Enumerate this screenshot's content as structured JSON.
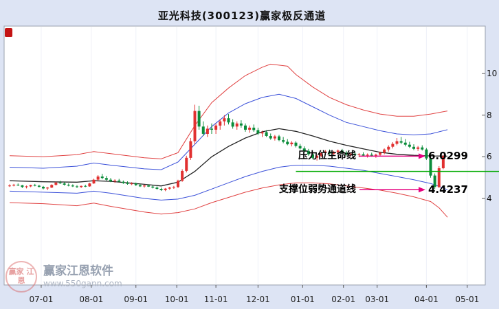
{
  "title": "亚光科技(300123)赢家极反通道",
  "watermark": {
    "logo_text": "赢家 江恩",
    "brand": "赢家江恩软件",
    "url": "www.550gann.com"
  },
  "colors": {
    "background": "#dde4f4",
    "plot_bg": "#ffffff",
    "up": "#e13030",
    "down": "#0b8c3a",
    "channel_red": "#e04040",
    "channel_blue": "#3a50d9",
    "life_line": "#222222",
    "green_line": "#00aa00",
    "arrow": "#e5007f"
  },
  "y_axis": {
    "ticks": [
      10,
      8,
      6,
      4
    ]
  },
  "x_axis": {
    "ticks": [
      "07-01",
      "08-01",
      "09-01",
      "10-01",
      "11-01",
      "12-01",
      "01-01",
      "02-01",
      "03-01",
      "04-01",
      "05-01"
    ]
  },
  "annotations": {
    "pressure": {
      "label": "压力位生命线",
      "value": "6.0299",
      "y_value": 6.03
    },
    "support": {
      "label": "支撑位弱势通道线",
      "value": "4.4237",
      "y_value": 4.42
    }
  },
  "chart_data": {
    "type": "candlestick",
    "title": "亚光科技(300123)赢家极反通道",
    "symbol": "300123",
    "stock_name": "亚光科技",
    "ylim": [
      0,
      12.3
    ],
    "x_tick_indices": [
      7.5,
      19.4,
      30,
      39.7,
      49,
      59,
      69.6,
      79.3,
      87.3,
      99,
      108.7
    ],
    "candles": [
      [
        4.6,
        4.68,
        4.55,
        4.62
      ],
      [
        4.62,
        4.7,
        4.58,
        4.66
      ],
      [
        4.66,
        4.72,
        4.6,
        4.63
      ],
      [
        4.63,
        4.65,
        4.5,
        4.55
      ],
      [
        4.55,
        4.62,
        4.48,
        4.58
      ],
      [
        4.58,
        4.66,
        4.54,
        4.64
      ],
      [
        4.64,
        4.7,
        4.58,
        4.61
      ],
      [
        4.61,
        4.66,
        4.52,
        4.56
      ],
      [
        4.56,
        4.6,
        4.44,
        4.48
      ],
      [
        4.48,
        4.55,
        4.4,
        4.52
      ],
      [
        4.52,
        4.68,
        4.5,
        4.65
      ],
      [
        4.65,
        4.8,
        4.62,
        4.76
      ],
      [
        4.76,
        4.85,
        4.7,
        4.72
      ],
      [
        4.72,
        4.78,
        4.62,
        4.66
      ],
      [
        4.66,
        4.72,
        4.58,
        4.62
      ],
      [
        4.62,
        4.68,
        4.55,
        4.58
      ],
      [
        4.58,
        4.64,
        4.5,
        4.55
      ],
      [
        4.55,
        4.62,
        4.5,
        4.6
      ],
      [
        4.6,
        4.66,
        4.54,
        4.58
      ],
      [
        4.58,
        4.75,
        4.56,
        4.72
      ],
      [
        4.72,
        4.95,
        4.7,
        4.9
      ],
      [
        4.9,
        5.12,
        4.85,
        5.05
      ],
      [
        5.05,
        5.18,
        4.92,
        4.98
      ],
      [
        4.98,
        5.08,
        4.85,
        4.9
      ],
      [
        4.9,
        4.98,
        4.78,
        4.82
      ],
      [
        4.82,
        4.92,
        4.75,
        4.86
      ],
      [
        4.86,
        4.94,
        4.78,
        4.8
      ],
      [
        4.8,
        4.86,
        4.7,
        4.74
      ],
      [
        4.74,
        4.82,
        4.66,
        4.7
      ],
      [
        4.7,
        4.78,
        4.64,
        4.72
      ],
      [
        4.72,
        4.76,
        4.6,
        4.64
      ],
      [
        4.64,
        4.7,
        4.55,
        4.58
      ],
      [
        4.58,
        4.66,
        4.52,
        4.62
      ],
      [
        4.62,
        4.68,
        4.55,
        4.57
      ],
      [
        4.57,
        4.62,
        4.48,
        4.52
      ],
      [
        4.52,
        4.58,
        4.42,
        4.46
      ],
      [
        4.46,
        4.52,
        4.36,
        4.4
      ],
      [
        4.4,
        4.5,
        4.35,
        4.47
      ],
      [
        4.47,
        4.56,
        4.42,
        4.52
      ],
      [
        4.52,
        4.6,
        4.46,
        4.55
      ],
      [
        4.55,
        4.9,
        4.5,
        4.85
      ],
      [
        4.85,
        5.4,
        4.8,
        5.32
      ],
      [
        5.32,
        6.05,
        5.25,
        5.95
      ],
      [
        5.95,
        6.9,
        5.85,
        6.75
      ],
      [
        6.75,
        8.5,
        6.6,
        8.2
      ],
      [
        8.2,
        8.45,
        7.3,
        7.45
      ],
      [
        7.45,
        7.7,
        7.0,
        7.1
      ],
      [
        7.1,
        7.5,
        6.95,
        7.35
      ],
      [
        7.35,
        7.6,
        7.1,
        7.3
      ],
      [
        7.3,
        7.6,
        7.1,
        7.5
      ],
      [
        7.5,
        7.8,
        7.3,
        7.7
      ],
      [
        7.7,
        8.0,
        7.5,
        7.85
      ],
      [
        7.85,
        8.05,
        7.55,
        7.65
      ],
      [
        7.65,
        7.8,
        7.35,
        7.45
      ],
      [
        7.45,
        7.7,
        7.3,
        7.6
      ],
      [
        7.6,
        7.75,
        7.4,
        7.5
      ],
      [
        7.5,
        7.6,
        7.2,
        7.3
      ],
      [
        7.3,
        7.5,
        7.15,
        7.4
      ],
      [
        7.4,
        7.55,
        7.2,
        7.28
      ],
      [
        7.28,
        7.4,
        7.05,
        7.12
      ],
      [
        7.12,
        7.25,
        6.95,
        7.18
      ],
      [
        7.18,
        7.28,
        6.95,
        7.0
      ],
      [
        7.0,
        7.12,
        6.82,
        6.88
      ],
      [
        6.88,
        7.05,
        6.78,
        6.98
      ],
      [
        6.98,
        7.05,
        6.75,
        6.8
      ],
      [
        6.8,
        6.95,
        6.65,
        6.72
      ],
      [
        6.72,
        6.85,
        6.55,
        6.6
      ],
      [
        6.6,
        6.75,
        6.5,
        6.68
      ],
      [
        6.68,
        6.75,
        6.45,
        6.52
      ],
      [
        6.52,
        6.62,
        6.35,
        6.4
      ],
      [
        6.4,
        6.5,
        6.2,
        6.28
      ],
      [
        6.28,
        6.38,
        6.05,
        6.12
      ],
      [
        6.12,
        6.22,
        5.88,
        5.95
      ],
      [
        5.95,
        6.1,
        5.82,
        6.05
      ],
      [
        6.05,
        6.22,
        5.98,
        6.18
      ],
      [
        6.18,
        6.32,
        6.08,
        6.25
      ],
      [
        6.25,
        6.35,
        6.1,
        6.15
      ],
      [
        6.15,
        6.28,
        6.05,
        6.22
      ],
      [
        6.22,
        6.35,
        6.12,
        6.3
      ],
      [
        6.3,
        6.38,
        6.15,
        6.2
      ],
      [
        6.2,
        6.28,
        6.05,
        6.1
      ],
      [
        6.1,
        6.2,
        6.0,
        6.15
      ],
      [
        6.15,
        6.25,
        6.05,
        6.08
      ],
      [
        6.08,
        6.18,
        5.98,
        6.12
      ],
      [
        6.12,
        6.22,
        6.02,
        6.06
      ],
      [
        6.06,
        6.16,
        5.96,
        6.1
      ],
      [
        6.1,
        6.2,
        6.0,
        6.05
      ],
      [
        6.05,
        6.15,
        5.95,
        6.1
      ],
      [
        6.1,
        6.25,
        6.02,
        6.2
      ],
      [
        6.2,
        6.4,
        6.12,
        6.35
      ],
      [
        6.35,
        6.55,
        6.25,
        6.48
      ],
      [
        6.48,
        6.7,
        6.4,
        6.62
      ],
      [
        6.62,
        6.9,
        6.55,
        6.75
      ],
      [
        6.75,
        6.95,
        6.6,
        6.68
      ],
      [
        6.68,
        6.85,
        6.5,
        6.58
      ],
      [
        6.58,
        6.72,
        6.42,
        6.48
      ],
      [
        6.48,
        6.6,
        6.32,
        6.38
      ],
      [
        6.38,
        6.52,
        6.28,
        6.45
      ],
      [
        6.45,
        6.55,
        6.3,
        6.35
      ],
      [
        6.35,
        6.42,
        5.85,
        5.92
      ],
      [
        5.92,
        5.98,
        5.0,
        5.1
      ],
      [
        5.1,
        5.2,
        4.45,
        4.55
      ],
      [
        4.55,
        5.55,
        4.5,
        5.45
      ],
      [
        5.45,
        6.1,
        5.4,
        6.03
      ]
    ],
    "lines": [
      {
        "name": "upper-channel-red-line",
        "color": "#e04040",
        "width": 1,
        "points": [
          [
            0,
            6.05
          ],
          [
            8,
            6.0
          ],
          [
            16,
            6.1
          ],
          [
            20,
            6.25
          ],
          [
            24,
            6.15
          ],
          [
            32,
            5.95
          ],
          [
            36,
            5.9
          ],
          [
            40,
            6.2
          ],
          [
            44,
            7.5
          ],
          [
            48,
            8.6
          ],
          [
            52,
            9.3
          ],
          [
            56,
            9.9
          ],
          [
            60,
            10.3
          ],
          [
            62,
            10.45
          ],
          [
            66,
            10.35
          ],
          [
            68,
            9.95
          ],
          [
            72,
            9.35
          ],
          [
            76,
            8.85
          ],
          [
            80,
            8.5
          ],
          [
            84,
            8.25
          ],
          [
            88,
            8.05
          ],
          [
            92,
            7.95
          ],
          [
            96,
            7.95
          ],
          [
            100,
            8.05
          ],
          [
            104,
            8.2
          ]
        ]
      },
      {
        "name": "upper-channel-blue-line",
        "color": "#3a50d9",
        "width": 1,
        "points": [
          [
            0,
            5.5
          ],
          [
            8,
            5.45
          ],
          [
            16,
            5.55
          ],
          [
            20,
            5.7
          ],
          [
            24,
            5.6
          ],
          [
            32,
            5.42
          ],
          [
            36,
            5.38
          ],
          [
            40,
            5.75
          ],
          [
            44,
            6.6
          ],
          [
            48,
            7.45
          ],
          [
            52,
            8.1
          ],
          [
            56,
            8.55
          ],
          [
            60,
            8.85
          ],
          [
            64,
            9.0
          ],
          [
            68,
            8.8
          ],
          [
            72,
            8.4
          ],
          [
            76,
            8.0
          ],
          [
            80,
            7.65
          ],
          [
            84,
            7.45
          ],
          [
            88,
            7.25
          ],
          [
            92,
            7.1
          ],
          [
            96,
            7.05
          ],
          [
            100,
            7.1
          ],
          [
            104,
            7.3
          ]
        ]
      },
      {
        "name": "life-line-black",
        "color": "#222222",
        "width": 1.3,
        "points": [
          [
            0,
            4.85
          ],
          [
            8,
            4.8
          ],
          [
            16,
            4.78
          ],
          [
            20,
            4.85
          ],
          [
            24,
            4.82
          ],
          [
            32,
            4.68
          ],
          [
            36,
            4.6
          ],
          [
            40,
            4.78
          ],
          [
            44,
            5.3
          ],
          [
            48,
            6.0
          ],
          [
            52,
            6.5
          ],
          [
            56,
            6.9
          ],
          [
            60,
            7.2
          ],
          [
            64,
            7.35
          ],
          [
            68,
            7.22
          ],
          [
            72,
            7.0
          ],
          [
            76,
            6.75
          ],
          [
            80,
            6.55
          ],
          [
            84,
            6.38
          ],
          [
            88,
            6.22
          ],
          [
            92,
            6.12
          ],
          [
            96,
            6.07
          ],
          [
            100,
            6.04
          ],
          [
            104,
            6.03
          ]
        ]
      },
      {
        "name": "lower-channel-blue-line",
        "color": "#3a50d9",
        "width": 1,
        "points": [
          [
            0,
            4.35
          ],
          [
            8,
            4.3
          ],
          [
            16,
            4.25
          ],
          [
            20,
            4.35
          ],
          [
            24,
            4.25
          ],
          [
            32,
            4.0
          ],
          [
            36,
            3.92
          ],
          [
            40,
            3.97
          ],
          [
            44,
            4.15
          ],
          [
            48,
            4.45
          ],
          [
            52,
            4.75
          ],
          [
            56,
            5.05
          ],
          [
            60,
            5.3
          ],
          [
            64,
            5.5
          ],
          [
            68,
            5.6
          ],
          [
            72,
            5.6
          ],
          [
            76,
            5.55
          ],
          [
            80,
            5.45
          ],
          [
            84,
            5.35
          ],
          [
            88,
            5.2
          ],
          [
            92,
            5.05
          ],
          [
            96,
            4.9
          ],
          [
            100,
            4.72
          ],
          [
            102,
            4.58
          ],
          [
            104,
            4.42
          ]
        ]
      },
      {
        "name": "lower-channel-red-line",
        "color": "#e04040",
        "width": 1,
        "points": [
          [
            0,
            3.8
          ],
          [
            8,
            3.75
          ],
          [
            16,
            3.65
          ],
          [
            20,
            3.78
          ],
          [
            24,
            3.62
          ],
          [
            32,
            3.35
          ],
          [
            36,
            3.25
          ],
          [
            40,
            3.32
          ],
          [
            44,
            3.5
          ],
          [
            48,
            3.8
          ],
          [
            52,
            4.05
          ],
          [
            56,
            4.3
          ],
          [
            60,
            4.5
          ],
          [
            64,
            4.65
          ],
          [
            68,
            4.75
          ],
          [
            72,
            4.75
          ],
          [
            76,
            4.7
          ],
          [
            80,
            4.6
          ],
          [
            84,
            4.5
          ],
          [
            88,
            4.4
          ],
          [
            92,
            4.25
          ],
          [
            96,
            4.08
          ],
          [
            100,
            3.85
          ],
          [
            102,
            3.55
          ],
          [
            104,
            3.1
          ]
        ]
      }
    ],
    "green_line": {
      "value": 5.3,
      "from_index": 68
    }
  }
}
